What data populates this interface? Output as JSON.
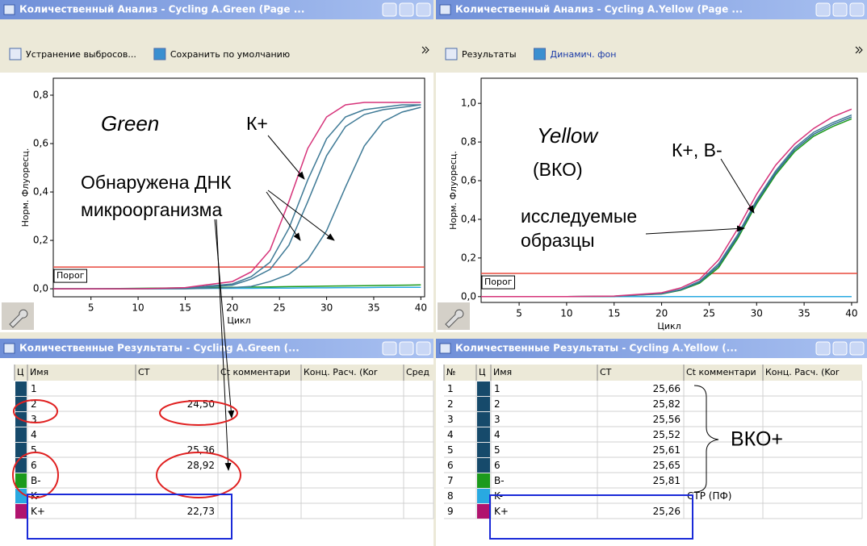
{
  "windows": [
    {
      "title": "Количественный Анализ - Cycling A.Green (Page ...",
      "toolbar": [
        "Устранение выбросов...",
        "Сохранить по умолчанию"
      ]
    },
    {
      "title": "Количественный Анализ - Cycling A.Yellow (Page ...",
      "toolbar": [
        "Результаты",
        "Динамич. фон"
      ]
    }
  ],
  "chart_data": [
    {
      "type": "line",
      "x_label": "Цикл",
      "y_label": "Норм. Флуоресц.",
      "x": [
        1,
        5,
        10,
        15,
        20,
        22,
        24,
        26,
        28,
        30,
        32,
        34,
        36,
        38,
        40
      ],
      "xlim": [
        1,
        40.4
      ],
      "xticks": [
        5,
        10,
        15,
        20,
        25,
        30,
        35,
        40
      ],
      "ylim": [
        -0.033,
        0.87
      ],
      "yticks": [
        {
          "value": 0,
          "label": "0,0"
        },
        {
          "value": 0.2,
          "label": "0,2"
        },
        {
          "value": 0.4,
          "label": "0,4"
        },
        {
          "value": 0.6,
          "label": "0,6"
        },
        {
          "value": 0.8,
          "label": "0,8"
        }
      ],
      "threshold": {
        "value": 0.09,
        "label": "Порог",
        "color": "#e8483c"
      },
      "series": [
        {
          "color": "#1c9a1c",
          "values": [
            0,
            0,
            0.002,
            0.004,
            0.006,
            0.007,
            0.008,
            0.009,
            0.01,
            0.011,
            0.012,
            0.013,
            0.014,
            0.015,
            0.016
          ]
        },
        {
          "color": "#29a9e1",
          "values": [
            0,
            0,
            0,
            0.001,
            0.002,
            0.002,
            0.003,
            0.003,
            0.004,
            0.004,
            0.005,
            0.005,
            0.006,
            0.006,
            0.006
          ]
        },
        {
          "color": "#3f7a96",
          "values": [
            0,
            0,
            0,
            0.003,
            0.02,
            0.05,
            0.11,
            0.25,
            0.45,
            0.62,
            0.71,
            0.74,
            0.75,
            0.76,
            0.76
          ]
        },
        {
          "color": "#3f7a96",
          "values": [
            0,
            0,
            0,
            0.002,
            0.015,
            0.04,
            0.08,
            0.18,
            0.36,
            0.55,
            0.67,
            0.72,
            0.74,
            0.75,
            0.76
          ]
        },
        {
          "color": "#3f7a96",
          "values": [
            0,
            0,
            0,
            0,
            0.005,
            0.01,
            0.03,
            0.06,
            0.12,
            0.24,
            0.42,
            0.59,
            0.69,
            0.73,
            0.75
          ]
        },
        {
          "color": "#d6337a",
          "values": [
            0,
            0,
            0,
            0.005,
            0.03,
            0.07,
            0.16,
            0.36,
            0.58,
            0.71,
            0.76,
            0.77,
            0.77,
            0.77,
            0.77
          ]
        }
      ],
      "annotations": [
        "Green",
        "К+",
        "Обнаружена ДНК",
        "микроорганизма"
      ]
    },
    {
      "type": "line",
      "x_label": "Цикл",
      "y_label": "Норм. Флуоресц.",
      "x": [
        1,
        5,
        10,
        15,
        20,
        22,
        24,
        26,
        28,
        30,
        32,
        34,
        36,
        38,
        40
      ],
      "xlim": [
        1,
        40.6
      ],
      "xticks": [
        5,
        10,
        15,
        20,
        25,
        30,
        35,
        40
      ],
      "ylim": [
        -0.03,
        1.13
      ],
      "yticks": [
        {
          "value": 0,
          "label": "0,0"
        },
        {
          "value": 0.2,
          "label": "0,2"
        },
        {
          "value": 0.4,
          "label": "0,4"
        },
        {
          "value": 0.6,
          "label": "0,6"
        },
        {
          "value": 0.8,
          "label": "0,8"
        },
        {
          "value": 1,
          "label": "1,0"
        }
      ],
      "threshold": {
        "value": 0.12,
        "label": "Порог",
        "color": "#e8483c"
      },
      "series": [
        {
          "color": "#29a9e1",
          "values": [
            0,
            0,
            0,
            0,
            0,
            0,
            0,
            0,
            0,
            0,
            0,
            0,
            0,
            0,
            0
          ]
        },
        {
          "color": "#1c9a1c",
          "values": [
            0,
            0,
            0,
            0.002,
            0.014,
            0.033,
            0.07,
            0.15,
            0.3,
            0.48,
            0.63,
            0.75,
            0.83,
            0.88,
            0.92
          ]
        },
        {
          "color": "#2f6f8f",
          "values": [
            0,
            0,
            0,
            0.002,
            0.015,
            0.035,
            0.075,
            0.16,
            0.31,
            0.49,
            0.64,
            0.76,
            0.84,
            0.89,
            0.93
          ]
        },
        {
          "color": "#3f7a96",
          "values": [
            0,
            0,
            0,
            0.002,
            0.016,
            0.037,
            0.08,
            0.17,
            0.32,
            0.5,
            0.65,
            0.77,
            0.85,
            0.9,
            0.94
          ]
        },
        {
          "color": "#d6337a",
          "values": [
            0,
            0,
            0,
            0.003,
            0.02,
            0.045,
            0.09,
            0.19,
            0.35,
            0.53,
            0.68,
            0.79,
            0.87,
            0.93,
            0.97
          ]
        }
      ],
      "annotations": [
        "Yellow",
        "(ВКО)",
        "К+, В-",
        "исследуемые",
        "образцы"
      ]
    }
  ],
  "tables": [
    {
      "title": "Количественные Результаты - Cycling A.Green (...",
      "columns": [
        "Ц",
        "Имя",
        "CT",
        "Ct комментари",
        "Конц. Расч. (Kor",
        "Сред"
      ],
      "rows": [
        {
          "color": "#164a6b",
          "name": "1"
        },
        {
          "color": "#164a6b",
          "name": "2",
          "ct": "24,50"
        },
        {
          "color": "#164a6b",
          "name": "3"
        },
        {
          "color": "#164a6b",
          "name": "4"
        },
        {
          "color": "#164a6b",
          "name": "5",
          "ct": "25,36"
        },
        {
          "color": "#164a6b",
          "name": "6",
          "ct": "28,92"
        },
        {
          "color": "#1c9a1c",
          "name": "B-"
        },
        {
          "color": "#29a9e1",
          "name": "K-"
        },
        {
          "color": "#b0136e",
          "name": "K+",
          "ct": "22,73"
        }
      ]
    },
    {
      "title": "Количественные Результаты - Cycling A.Yellow (...",
      "columns": [
        "№",
        "Ц",
        "Имя",
        "CT",
        "Ct комментари",
        "Конц. Расч. (Kor"
      ],
      "rows": [
        {
          "number": 1,
          "color": "#164a6b",
          "name": "1",
          "ct": "25,66"
        },
        {
          "number": 2,
          "color": "#164a6b",
          "name": "2",
          "ct": "25,82"
        },
        {
          "number": 3,
          "color": "#164a6b",
          "name": "3",
          "ct": "25,56"
        },
        {
          "number": 4,
          "color": "#164a6b",
          "name": "4",
          "ct": "25,52"
        },
        {
          "number": 5,
          "color": "#164a6b",
          "name": "5",
          "ct": "25,61"
        },
        {
          "number": 6,
          "color": "#164a6b",
          "name": "6",
          "ct": "25,65"
        },
        {
          "number": 7,
          "color": "#1c9a1c",
          "name": "B-",
          "ct": "25,81"
        },
        {
          "number": 8,
          "color": "#29a9e1",
          "name": "K-",
          "comment": "CTP (ПФ)"
        },
        {
          "number": 9,
          "color": "#b0136e",
          "name": "K+",
          "ct": "25,26"
        }
      ],
      "annotation": "ВКО+"
    }
  ]
}
